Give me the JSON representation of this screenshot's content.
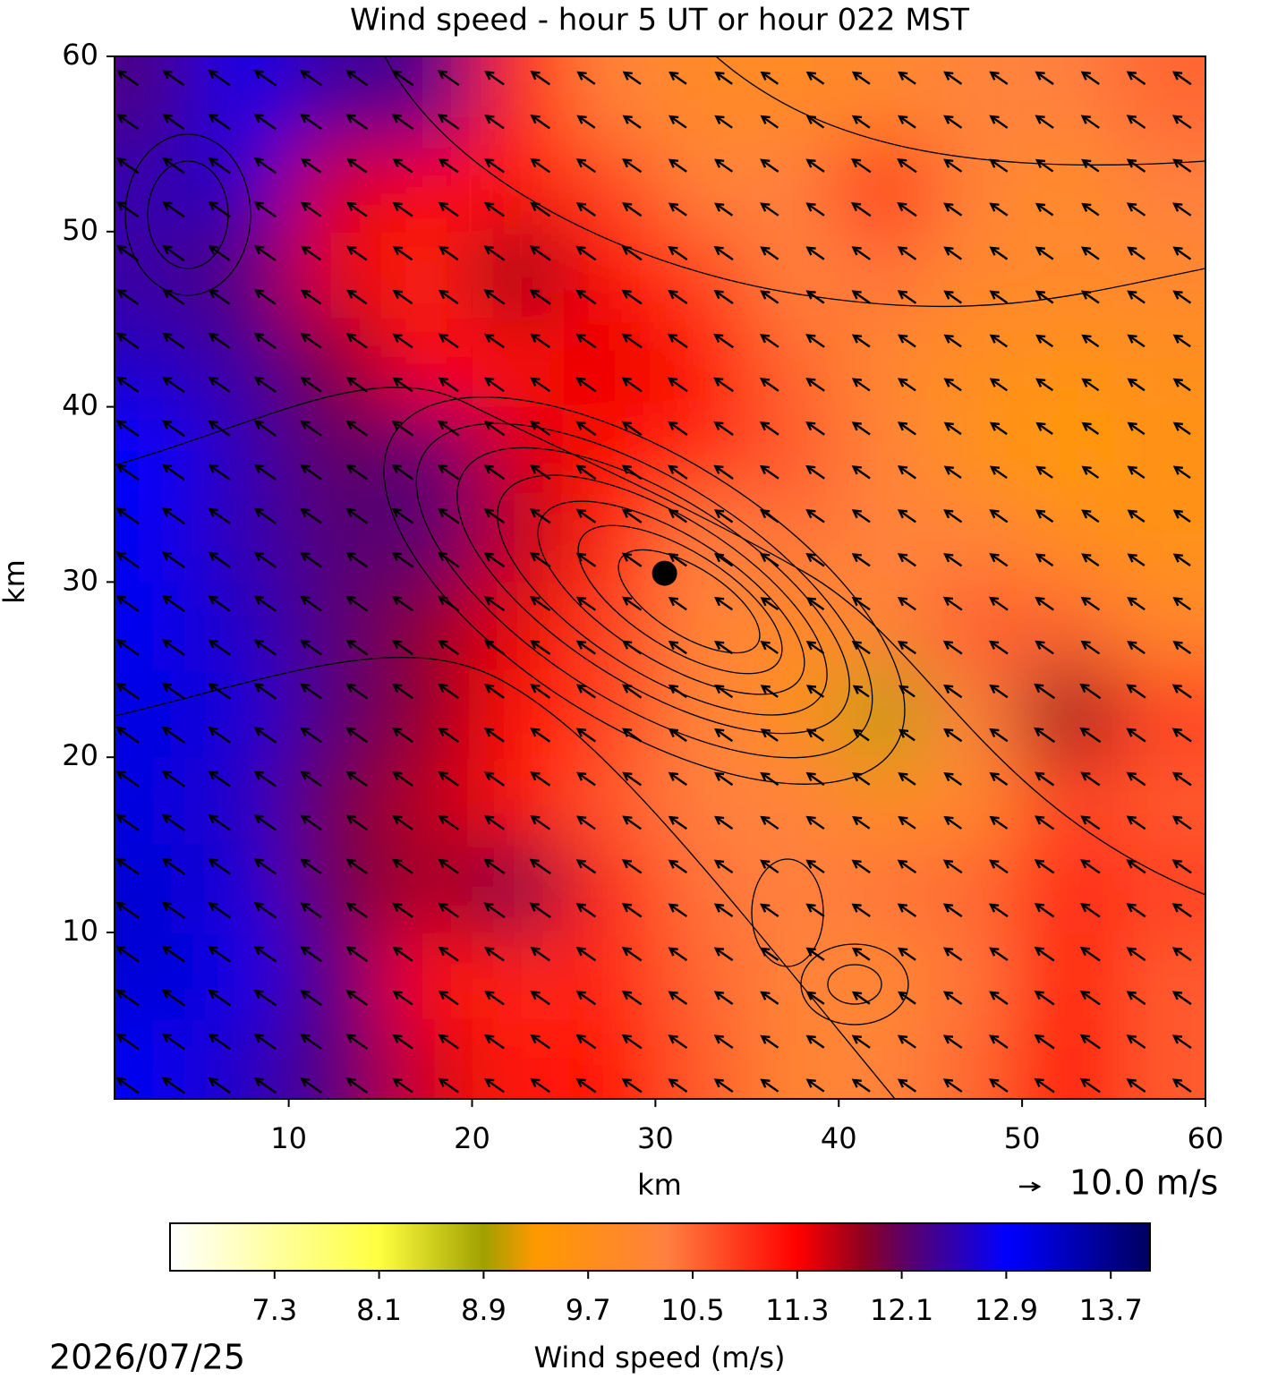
{
  "chart_data": {
    "type": "heatmap",
    "title": "Wind speed - hour 5 UT or hour 022 MST",
    "xlabel": "km",
    "ylabel": "km",
    "xlim": [
      0.5,
      60
    ],
    "ylim": [
      0.5,
      60
    ],
    "xticks": [
      10,
      20,
      30,
      40,
      50,
      60
    ],
    "yticks": [
      10,
      20,
      30,
      40,
      50,
      60
    ],
    "field": {
      "x": [
        2.5,
        7.5,
        12.5,
        17.5,
        22.5,
        27.5,
        32.5,
        37.5,
        42.5,
        47.5,
        52.5,
        57.5
      ],
      "y": [
        57.5,
        52.5,
        47.5,
        42.5,
        37.5,
        32.5,
        27.5,
        22.5,
        17.5,
        12.5,
        7.5,
        2.5
      ],
      "values": [
        [
          12.3,
          12.8,
          12.4,
          12.3,
          11.0,
          10.2,
          9.9,
          9.9,
          10.0,
          10.2,
          10.3,
          10.5
        ],
        [
          12.5,
          12.6,
          11.5,
          11.3,
          11.2,
          10.8,
          10.2,
          10.3,
          11.0,
          10.2,
          9.8,
          10.3
        ],
        [
          12.4,
          12.2,
          11.4,
          11.0,
          11.8,
          11.3,
          10.8,
          10.2,
          10.4,
          10.0,
          10.0,
          10.0
        ],
        [
          12.6,
          12.4,
          11.9,
          11.3,
          11.2,
          11.4,
          11.2,
          10.5,
          10.0,
          9.8,
          9.6,
          9.7
        ],
        [
          12.9,
          12.5,
          12.1,
          12.2,
          11.5,
          11.2,
          11.0,
          10.6,
          10.2,
          9.6,
          9.4,
          9.6
        ],
        [
          13.0,
          12.5,
          12.2,
          12.2,
          11.6,
          11.0,
          10.3,
          10.4,
          10.2,
          10.2,
          9.8,
          9.6
        ],
        [
          13.0,
          12.6,
          12.2,
          11.8,
          11.4,
          10.8,
          10.2,
          9.9,
          10.2,
          10.6,
          10.5,
          10.0
        ],
        [
          13.1,
          12.7,
          12.2,
          11.8,
          11.2,
          10.8,
          10.2,
          9.7,
          9.0,
          10.3,
          11.8,
          10.8
        ],
        [
          13.1,
          12.6,
          12.0,
          11.6,
          11.2,
          10.6,
          10.3,
          10.2,
          9.8,
          10.0,
          10.8,
          10.6
        ],
        [
          13.2,
          12.7,
          12.0,
          11.7,
          12.0,
          11.0,
          10.4,
          10.3,
          10.4,
          10.5,
          11.0,
          10.8
        ],
        [
          13.2,
          12.8,
          12.2,
          11.3,
          11.0,
          11.0,
          10.5,
          10.2,
          10.0,
          10.4,
          11.2,
          10.6
        ],
        [
          13.0,
          12.6,
          12.2,
          11.5,
          11.1,
          11.2,
          10.6,
          10.1,
          10.2,
          10.5,
          11.3,
          10.6
        ]
      ]
    },
    "arrow_direction_deg": 145,
    "quiver_key": {
      "value": 10.0,
      "label": "10.0 m/s"
    },
    "marker": {
      "x": 30.5,
      "y": 30.5
    },
    "colorbar": {
      "label": "Wind speed (m/s)",
      "lim": [
        6.5,
        14.0
      ],
      "ticks": [
        7.3,
        8.1,
        8.9,
        9.7,
        10.5,
        11.3,
        12.1,
        12.9,
        13.7
      ],
      "colormap": [
        {
          "value": 6.5,
          "color": "#ffffff"
        },
        {
          "value": 8.1,
          "color": "#ffff40"
        },
        {
          "value": 8.9,
          "color": "#a0a000"
        },
        {
          "value": 9.3,
          "color": "#ff9900"
        },
        {
          "value": 10.3,
          "color": "#ff8040"
        },
        {
          "value": 11.3,
          "color": "#ff0000"
        },
        {
          "value": 11.8,
          "color": "#900020"
        },
        {
          "value": 12.1,
          "color": "#600060"
        },
        {
          "value": 12.9,
          "color": "#0000ff"
        },
        {
          "value": 14.0,
          "color": "#000060"
        }
      ]
    },
    "date": "2026/07/25"
  }
}
